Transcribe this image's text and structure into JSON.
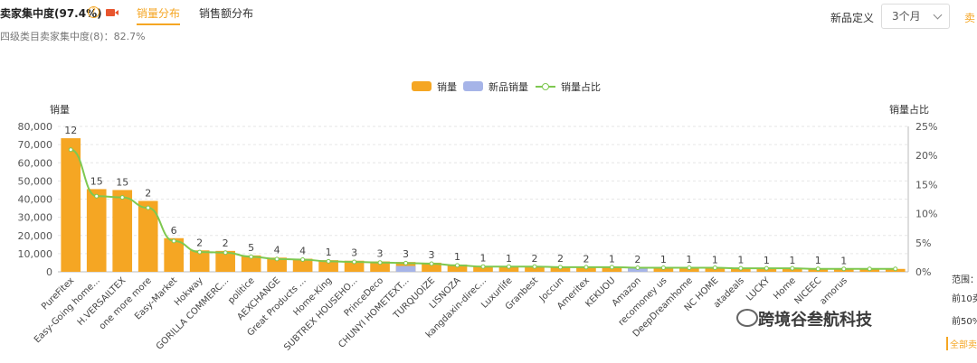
{
  "header": {
    "title": "卖家集中度(97.4%)",
    "help_glyph": "?",
    "tabs": [
      {
        "label": "销量分布"
      },
      {
        "label": "销售额分布"
      }
    ],
    "subtitle": "四级类目卖家集中度(8)：82.7%",
    "new_def_label": "新品定义",
    "period_select": {
      "value": "3个月"
    },
    "right_edge_text": "卖"
  },
  "side_panel": {
    "range_label": "范围：",
    "top10": "前10卖",
    "top50": "前50%",
    "all_link": "全部卖"
  },
  "watermark": "跨境谷叁航科技",
  "colors": {
    "bar": "#f5a623",
    "new_bar": "#a6b4e8",
    "line": "#7ec850"
  },
  "chart_data": {
    "type": "bar",
    "ylabel": "销量",
    "y2label": "销量占比",
    "ylim": [
      0,
      80000
    ],
    "y2lim": [
      0,
      25
    ],
    "yticks": [
      "0",
      "10,000",
      "20,000",
      "30,000",
      "40,000",
      "50,000",
      "60,000",
      "70,000",
      "80,000"
    ],
    "y2ticks": [
      "0%",
      "5%",
      "10%",
      "15%",
      "20%",
      "25%"
    ],
    "legend": [
      "销量",
      "新品销量",
      "销量占比"
    ],
    "legend_position": "top-center",
    "categories": [
      "PureFitex",
      "Easy-Going home...",
      "H.VERSAILTEX",
      "one more more",
      "Easy-Market",
      "Hokway",
      "GORILLA COMMERC...",
      "politice",
      "AEXCHANGE",
      "Great Products ...",
      "Home-King",
      "SUBTREX HOUSEHO...",
      "PrinceDeco",
      "CHUNYI HOMETEXT...",
      "TURQUOIZE",
      "LISNOZA",
      "kangdaxin-direc...",
      "Luxurlife",
      "Granbest",
      "Joccun",
      "Ameritex",
      "KEKUOU",
      "Amazon",
      "recomoney us",
      "DeepDreamhome",
      "NC HOME",
      "atadeals",
      "LUCKY",
      "Home",
      "NICEEC",
      "amorus",
      "",
      ""
    ],
    "series": [
      {
        "name": "销量",
        "values": [
          73500,
          45500,
          45000,
          39000,
          18500,
          11800,
          11500,
          9000,
          7800,
          7200,
          6400,
          6100,
          5700,
          5400,
          5000,
          4000,
          3200,
          3100,
          3000,
          2900,
          2800,
          2700,
          2600,
          2500,
          2400,
          2300,
          2200,
          2100,
          2000,
          1900,
          1800,
          1700,
          1600
        ]
      },
      {
        "name": "新品销量",
        "values": [
          0,
          0,
          0,
          0,
          0,
          0,
          0,
          0,
          0,
          0,
          0,
          0,
          0,
          3200,
          0,
          0,
          0,
          0,
          0,
          0,
          0,
          0,
          2600,
          0,
          0,
          0,
          0,
          0,
          0,
          0,
          0,
          0,
          0
        ]
      },
      {
        "name": "销量占比",
        "values": [
          21.0,
          13.0,
          12.8,
          11.0,
          5.3,
          3.4,
          3.3,
          2.6,
          2.2,
          2.1,
          1.8,
          1.7,
          1.6,
          1.5,
          1.4,
          1.1,
          0.9,
          0.9,
          0.9,
          0.8,
          0.8,
          0.8,
          0.7,
          0.7,
          0.7,
          0.7,
          0.6,
          0.6,
          0.6,
          0.5,
          0.5,
          0.5,
          0.5
        ]
      }
    ],
    "bar_labels": [
      "12",
      "15",
      "15",
      "2",
      "6",
      "2",
      "2",
      "5",
      "4",
      "4",
      "1",
      "3",
      "3",
      "3",
      "3",
      "1",
      "1",
      "1",
      "2",
      "2",
      "2",
      "1",
      "2",
      "1",
      "1",
      "1",
      "1",
      "1",
      "1",
      "1",
      "1",
      "",
      ""
    ]
  }
}
